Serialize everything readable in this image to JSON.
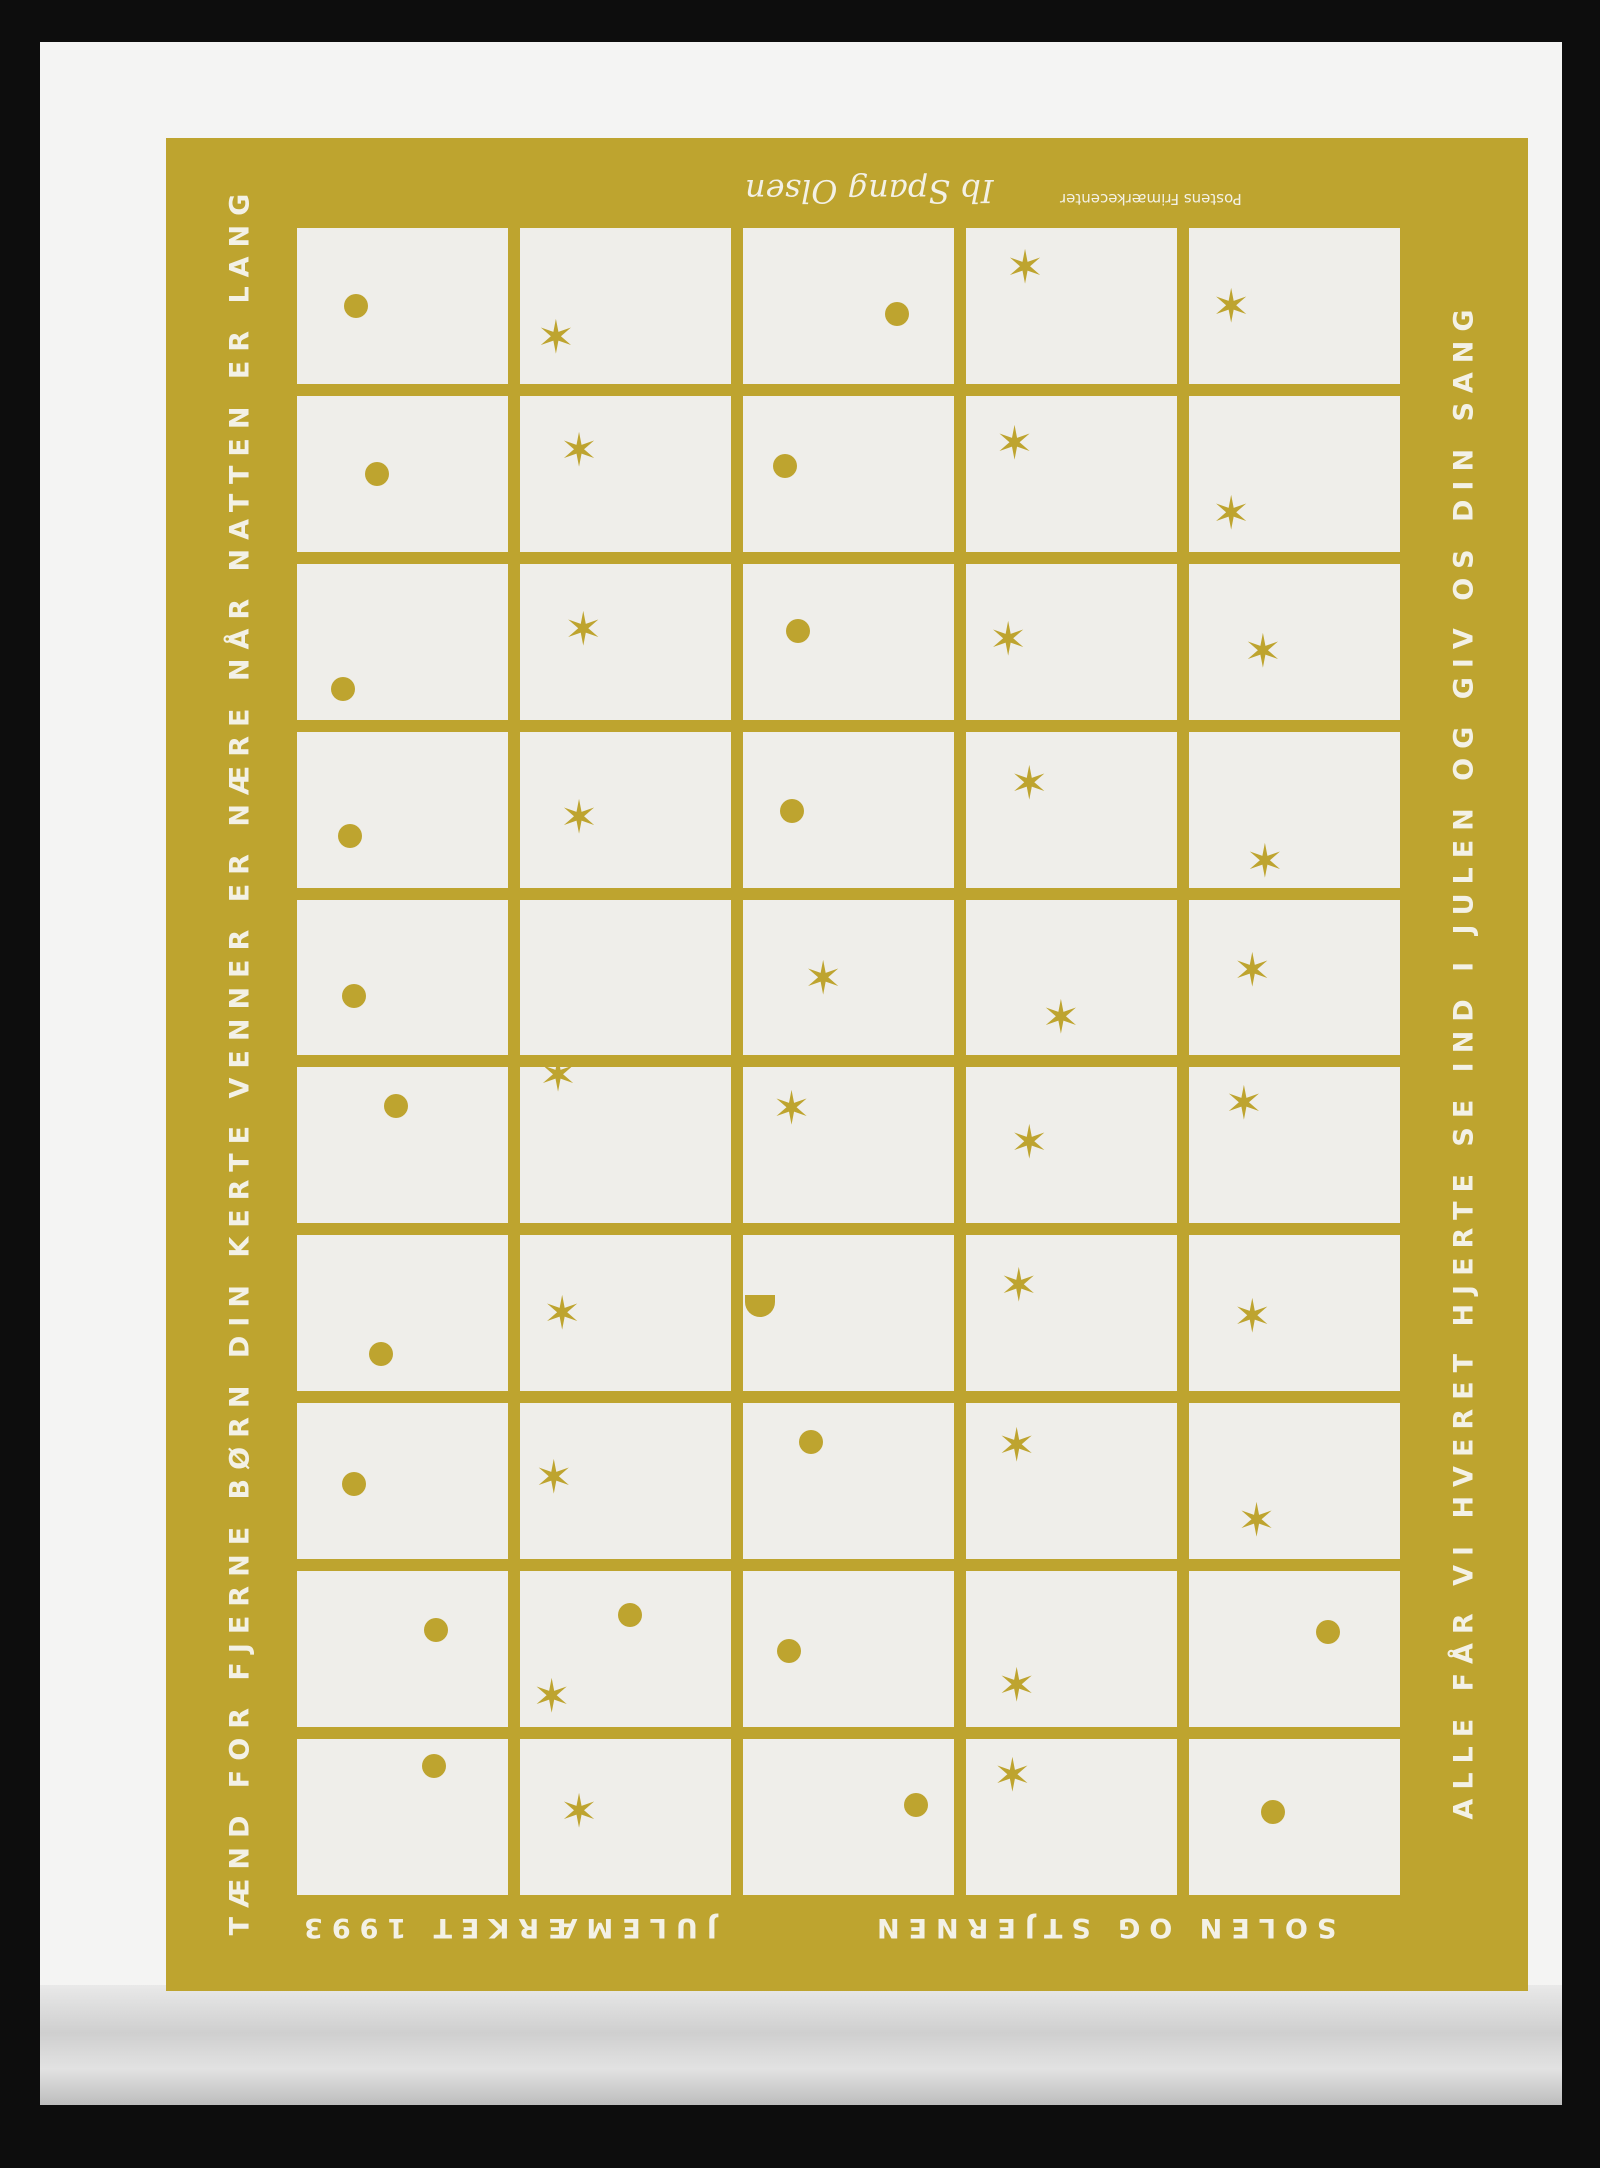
{
  "sheet": {
    "color": "#bea42f",
    "left_text": "TÆND FOR FJERNE BØRN DIN KERTE     VENNER ER NÆRE NÅR NATTEN ER LANG",
    "right_text": "ALLE FÅR VI HVERET HJERTE     SE IND I JULEN OG GIV OS DIN SANG",
    "bottom_left": "JULEMÆRKET 1993",
    "bottom_right": "SOLEN OG STJERNEN",
    "top_publisher": "Postens Frimærkecenter",
    "signature": "Ib Spang Olsen",
    "cells": [
      [
        "dot",
        "star",
        "dot",
        "star",
        "star"
      ],
      [
        "dot",
        "star",
        "dot",
        "star",
        "star"
      ],
      [
        "dot",
        "star",
        "dot",
        "star",
        "star"
      ],
      [
        "dot",
        "star",
        "dot",
        "star",
        "star"
      ],
      [
        "dot",
        "",
        "star",
        "star",
        "star"
      ],
      [
        "dot",
        "star",
        "star",
        "star",
        "star"
      ],
      [
        "dot",
        "star",
        "half-dot",
        "star",
        "star"
      ],
      [
        "dot",
        "star",
        "dot",
        "star",
        "star"
      ],
      [
        "dot",
        "dot+star",
        "dot",
        "star",
        "dot"
      ],
      [
        "dot",
        "star",
        "dot",
        "star",
        "dot"
      ]
    ]
  }
}
